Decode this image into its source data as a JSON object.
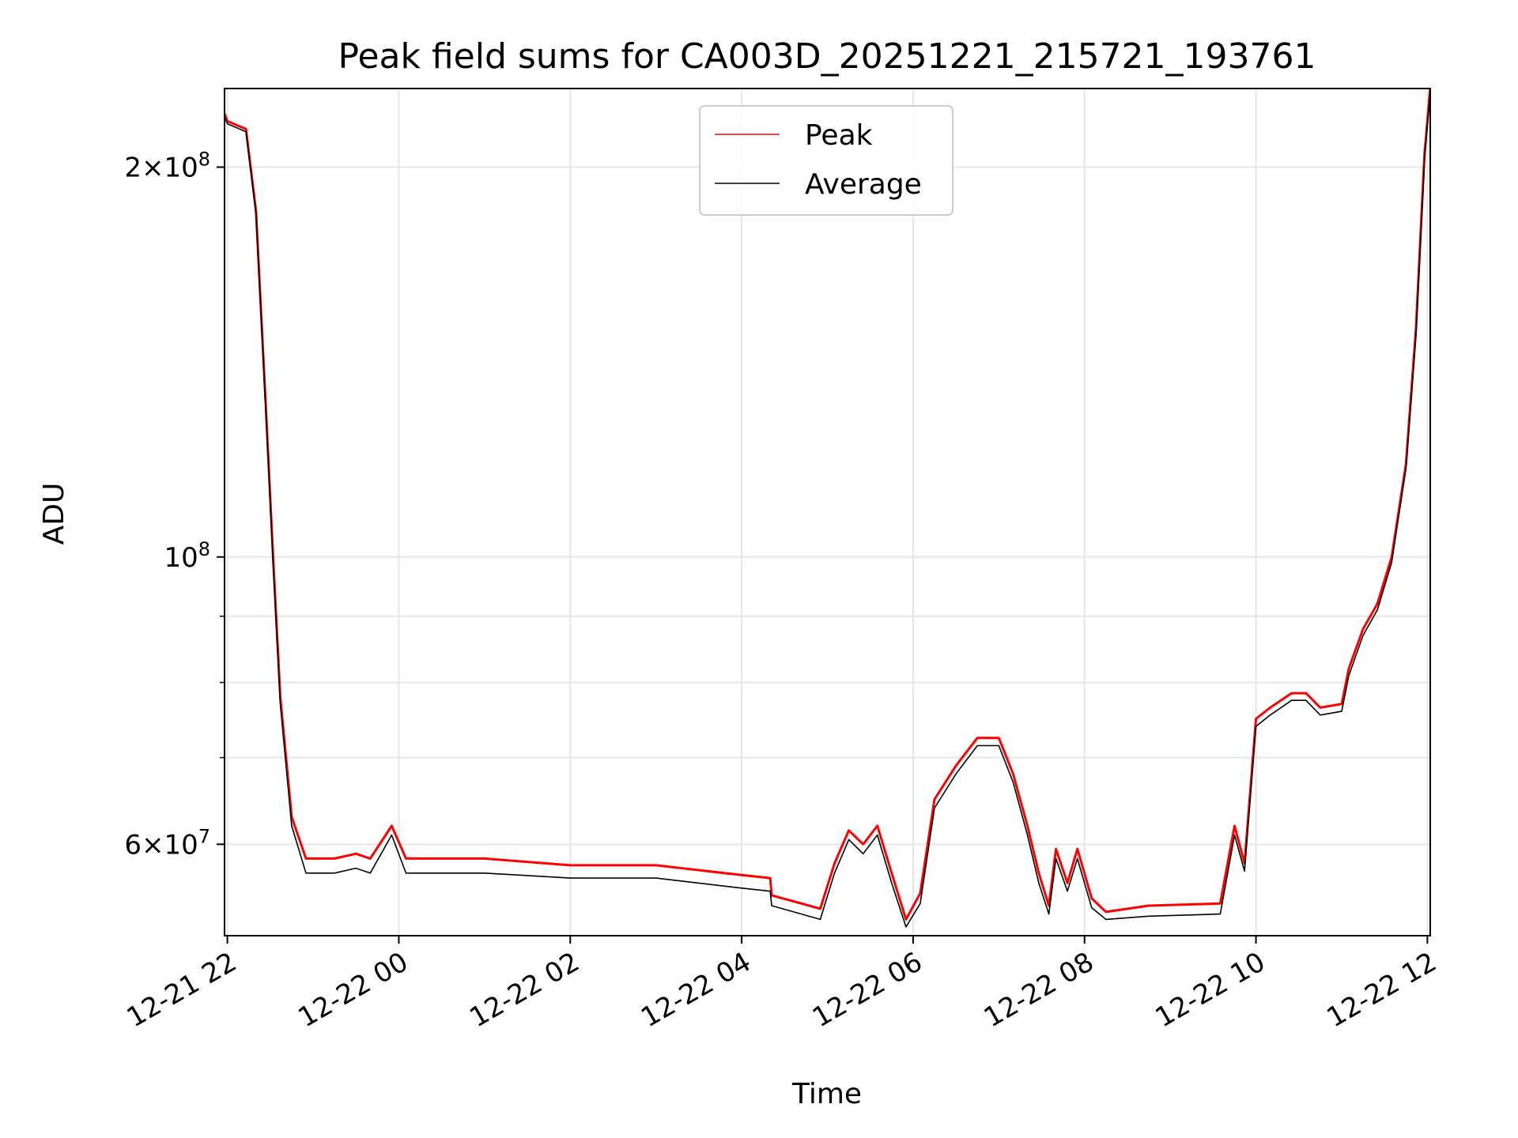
{
  "chart_data": {
    "type": "line",
    "title": "Peak field sums for CA003D_20251221_215721_193761",
    "xlabel": "Time",
    "ylabel": "ADU",
    "yscale": "log",
    "ylim": [
      51000000,
      230000000
    ],
    "xlim": [
      "12-21 21:58",
      "12-22 12:02"
    ],
    "x_ticks": [
      "12-21 22",
      "12-22 00",
      "12-22 02",
      "12-22 04",
      "12-22 06",
      "12-22 08",
      "12-22 10",
      "12-22 12"
    ],
    "y_ticks_major": [
      {
        "value": 60000000,
        "mantissa": "6",
        "exponent": "7"
      },
      {
        "value": 100000000,
        "mantissa": "",
        "exponent": "8"
      },
      {
        "value": 200000000,
        "mantissa": "2",
        "exponent": "8"
      }
    ],
    "y_ticks_minor": [
      70000000,
      80000000,
      90000000
    ],
    "grid": true,
    "legend_placement": "upper-center",
    "colors": {
      "peak": "#ff0000",
      "average": "#000000",
      "grid": "#e6e6e6"
    },
    "series": [
      {
        "name": "Peak",
        "color": "#ff0000",
        "points": [
          [
            "12-21 21:58",
            220000000
          ],
          [
            "12-21 22:00",
            217000000
          ],
          [
            "12-21 22:13",
            214000000
          ],
          [
            "12-21 22:20",
            185000000
          ],
          [
            "12-21 22:27",
            130000000
          ],
          [
            "12-21 22:32",
            100000000
          ],
          [
            "12-21 22:37",
            78000000
          ],
          [
            "12-21 22:45",
            63000000
          ],
          [
            "12-21 22:55",
            58500000
          ],
          [
            "12-21 23:15",
            58500000
          ],
          [
            "12-21 23:30",
            59000000
          ],
          [
            "12-21 23:40",
            58500000
          ],
          [
            "12-21 23:55",
            62000000
          ],
          [
            "12-22 00:05",
            58500000
          ],
          [
            "12-22 01:00",
            58500000
          ],
          [
            "12-22 02:00",
            57800000
          ],
          [
            "12-22 03:00",
            57800000
          ],
          [
            "12-22 04:00",
            56800000
          ],
          [
            "12-22 04:20",
            56500000
          ],
          [
            "12-22 04:21",
            54800000
          ],
          [
            "12-22 04:55",
            53500000
          ],
          [
            "12-22 05:05",
            58000000
          ],
          [
            "12-22 05:15",
            61500000
          ],
          [
            "12-22 05:25",
            60000000
          ],
          [
            "12-22 05:35",
            62000000
          ],
          [
            "12-22 05:45",
            57000000
          ],
          [
            "12-22 05:55",
            52500000
          ],
          [
            "12-22 06:05",
            55000000
          ],
          [
            "12-22 06:15",
            65000000
          ],
          [
            "12-22 06:30",
            69000000
          ],
          [
            "12-22 06:45",
            72500000
          ],
          [
            "12-22 07:00",
            72500000
          ],
          [
            "12-22 07:10",
            68000000
          ],
          [
            "12-22 07:20",
            62000000
          ],
          [
            "12-22 07:28",
            57000000
          ],
          [
            "12-22 07:35",
            53800000
          ],
          [
            "12-22 07:40",
            59500000
          ],
          [
            "12-22 07:48",
            56000000
          ],
          [
            "12-22 07:55",
            59500000
          ],
          [
            "12-22 08:05",
            54500000
          ],
          [
            "12-22 08:15",
            53200000
          ],
          [
            "12-22 08:45",
            53800000
          ],
          [
            "12-22 09:35",
            54000000
          ],
          [
            "12-22 09:45",
            62000000
          ],
          [
            "12-22 09:52",
            58000000
          ],
          [
            "12-22 10:00",
            75000000
          ],
          [
            "12-22 10:10",
            76500000
          ],
          [
            "12-22 10:25",
            78500000
          ],
          [
            "12-22 10:35",
            78500000
          ],
          [
            "12-22 10:45",
            76500000
          ],
          [
            "12-22 11:00",
            77000000
          ],
          [
            "12-22 11:05",
            82000000
          ],
          [
            "12-22 11:15",
            88000000
          ],
          [
            "12-22 11:25",
            92000000
          ],
          [
            "12-22 11:35",
            100000000
          ],
          [
            "12-22 11:45",
            118000000
          ],
          [
            "12-22 11:52",
            150000000
          ],
          [
            "12-22 11:58",
            205000000
          ],
          [
            "12-22 12:02",
            230000000
          ]
        ]
      },
      {
        "name": "Average",
        "color": "#000000",
        "points": [
          [
            "12-21 21:58",
            219000000
          ],
          [
            "12-21 22:00",
            216000000
          ],
          [
            "12-21 22:13",
            213000000
          ],
          [
            "12-21 22:20",
            184000000
          ],
          [
            "12-21 22:27",
            129000000
          ],
          [
            "12-21 22:32",
            99000000
          ],
          [
            "12-21 22:37",
            77000000
          ],
          [
            "12-21 22:45",
            62000000
          ],
          [
            "12-21 22:55",
            57000000
          ],
          [
            "12-21 23:15",
            57000000
          ],
          [
            "12-21 23:30",
            57500000
          ],
          [
            "12-21 23:40",
            57000000
          ],
          [
            "12-21 23:55",
            61000000
          ],
          [
            "12-22 00:05",
            57000000
          ],
          [
            "12-22 01:00",
            57000000
          ],
          [
            "12-22 02:00",
            56500000
          ],
          [
            "12-22 03:00",
            56500000
          ],
          [
            "12-22 04:00",
            55500000
          ],
          [
            "12-22 04:20",
            55200000
          ],
          [
            "12-22 04:21",
            53800000
          ],
          [
            "12-22 04:55",
            52500000
          ],
          [
            "12-22 05:05",
            57000000
          ],
          [
            "12-22 05:15",
            60500000
          ],
          [
            "12-22 05:25",
            59000000
          ],
          [
            "12-22 05:35",
            61000000
          ],
          [
            "12-22 05:45",
            56000000
          ],
          [
            "12-22 05:55",
            51800000
          ],
          [
            "12-22 06:05",
            54000000
          ],
          [
            "12-22 06:15",
            64000000
          ],
          [
            "12-22 06:30",
            68000000
          ],
          [
            "12-22 06:45",
            71500000
          ],
          [
            "12-22 07:00",
            71500000
          ],
          [
            "12-22 07:10",
            67000000
          ],
          [
            "12-22 07:20",
            61000000
          ],
          [
            "12-22 07:28",
            56000000
          ],
          [
            "12-22 07:35",
            53000000
          ],
          [
            "12-22 07:40",
            58500000
          ],
          [
            "12-22 07:48",
            55200000
          ],
          [
            "12-22 07:55",
            58500000
          ],
          [
            "12-22 08:05",
            53600000
          ],
          [
            "12-22 08:15",
            52500000
          ],
          [
            "12-22 08:45",
            52800000
          ],
          [
            "12-22 09:35",
            53000000
          ],
          [
            "12-22 09:45",
            61000000
          ],
          [
            "12-22 09:52",
            57200000
          ],
          [
            "12-22 10:00",
            74000000
          ],
          [
            "12-22 10:10",
            75500000
          ],
          [
            "12-22 10:25",
            77500000
          ],
          [
            "12-22 10:35",
            77500000
          ],
          [
            "12-22 10:45",
            75500000
          ],
          [
            "12-22 11:00",
            76000000
          ],
          [
            "12-22 11:05",
            81000000
          ],
          [
            "12-22 11:15",
            87000000
          ],
          [
            "12-22 11:25",
            91000000
          ],
          [
            "12-22 11:35",
            99000000
          ],
          [
            "12-22 11:45",
            117000000
          ],
          [
            "12-22 11:52",
            148000000
          ],
          [
            "12-22 11:58",
            203000000
          ],
          [
            "12-22 12:02",
            229000000
          ]
        ]
      }
    ]
  }
}
